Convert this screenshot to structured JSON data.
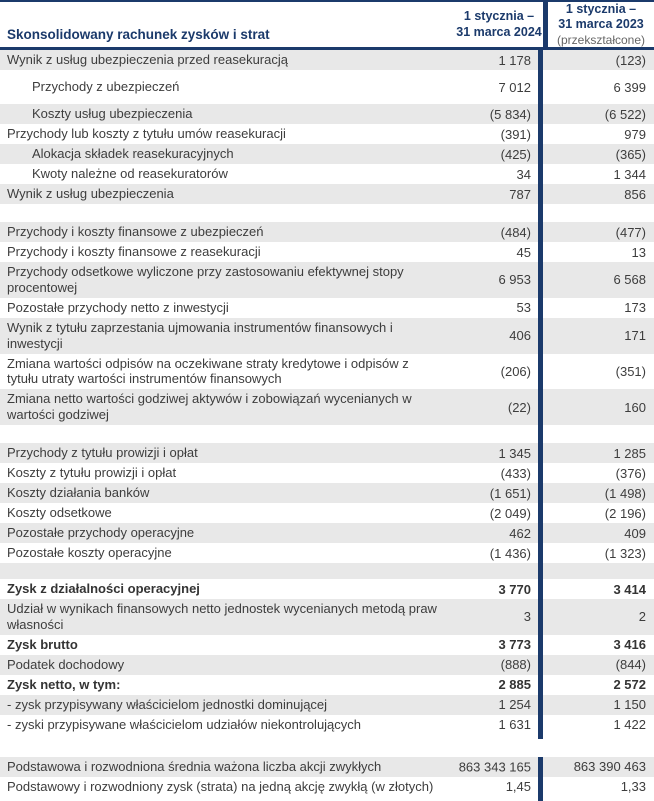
{
  "title": "Skonsolidowany rachunek zysków i strat",
  "columns": {
    "col_2024": {
      "line1": "1 stycznia –",
      "line2": "31 marca 2024"
    },
    "col_2023": {
      "line1": "1 stycznia –",
      "line2": "31 marca 2023",
      "note": "(przekształcone)"
    }
  },
  "colors": {
    "navy": "#1b3a6b",
    "row_shade": "#e8e8e8",
    "text": "#3d3d3d",
    "note_gray": "#666666"
  },
  "rows": [
    {
      "type": "data",
      "label": "Wynik z usług ubezpieczenia przed reasekuracją",
      "v2024": "1 178",
      "v2023": "(123)",
      "shaded": true
    },
    {
      "type": "data",
      "label": "Przychody z ubezpieczeń",
      "v2024": "7 012",
      "v2023": "6 399",
      "indent": true,
      "tall": true
    },
    {
      "type": "data",
      "label": "Koszty usług ubezpieczenia",
      "v2024": "(5 834)",
      "v2023": "(6 522)",
      "shaded": true,
      "indent": true
    },
    {
      "type": "data",
      "label": "Przychody lub koszty z tytułu umów reasekuracji",
      "v2024": "(391)",
      "v2023": "979"
    },
    {
      "type": "data",
      "label": "Alokacja składek reasekuracyjnych",
      "v2024": "(425)",
      "v2023": "(365)",
      "shaded": true,
      "indent": true
    },
    {
      "type": "data",
      "label": "Kwoty należne od reasekuratorów",
      "v2024": "34",
      "v2023": "1 344",
      "indent": true
    },
    {
      "type": "data",
      "label": "Wynik z usług ubezpieczenia",
      "v2024": "787",
      "v2023": "856",
      "shaded": true
    },
    {
      "type": "spacer",
      "height": 18,
      "shaded": false,
      "divider": true
    },
    {
      "type": "data",
      "label": "Przychody i koszty finansowe z ubezpieczeń",
      "v2024": "(484)",
      "v2023": "(477)",
      "shaded": true
    },
    {
      "type": "data",
      "label": "Przychody i koszty finansowe z reasekuracji",
      "v2024": "45",
      "v2023": "13"
    },
    {
      "type": "data",
      "label": "Przychody odsetkowe wyliczone przy zastosowaniu efektywnej stopy procentowej",
      "v2024": "6 953",
      "v2023": "6 568",
      "shaded": true
    },
    {
      "type": "data",
      "label": "Pozostałe przychody netto z inwestycji",
      "v2024": "53",
      "v2023": "173"
    },
    {
      "type": "data",
      "label": "Wynik z tytułu zaprzestania ujmowania instrumentów finansowych i inwestycji",
      "v2024": "406",
      "v2023": "171",
      "shaded": true
    },
    {
      "type": "data",
      "label": "Zmiana wartości odpisów na oczekiwane straty kredytowe i odpisów z tytułu utraty wartości instrumentów finansowych",
      "v2024": "(206)",
      "v2023": "(351)",
      "tall": true
    },
    {
      "type": "data",
      "label": "Zmiana netto wartości godziwej aktywów i zobowiązań wycenianych w wartości godziwej",
      "v2024": "(22)",
      "v2023": "160",
      "shaded": true
    },
    {
      "type": "spacer",
      "height": 18,
      "shaded": false,
      "divider": true
    },
    {
      "type": "data",
      "label": "Przychody z tytułu prowizji i opłat",
      "v2024": "1 345",
      "v2023": "1 285",
      "shaded": true
    },
    {
      "type": "data",
      "label": "Koszty z tytułu prowizji i opłat",
      "v2024": "(433)",
      "v2023": "(376)"
    },
    {
      "type": "data",
      "label": "Koszty działania banków",
      "v2024": "(1 651)",
      "v2023": "(1 498)",
      "shaded": true
    },
    {
      "type": "data",
      "label": "Koszty odsetkowe",
      "v2024": "(2 049)",
      "v2023": "(2 196)"
    },
    {
      "type": "data",
      "label": "Pozostałe przychody operacyjne",
      "v2024": "462",
      "v2023": "409",
      "shaded": true
    },
    {
      "type": "data",
      "label": "Pozostałe koszty operacyjne",
      "v2024": "(1 436)",
      "v2023": "(1 323)"
    },
    {
      "type": "spacer",
      "height": 16,
      "shaded": true,
      "divider": true
    },
    {
      "type": "data",
      "label": "Zysk z działalności operacyjnej",
      "v2024": "3 770",
      "v2023": "3 414",
      "bold": true
    },
    {
      "type": "data",
      "label": "Udział w wynikach finansowych netto jednostek wycenianych metodą praw własności",
      "v2024": "3",
      "v2023": "2",
      "shaded": true
    },
    {
      "type": "data",
      "label": "Zysk brutto",
      "v2024": "3 773",
      "v2023": "3 416",
      "bold": true
    },
    {
      "type": "data",
      "label": "Podatek dochodowy",
      "v2024": "(888)",
      "v2023": "(844)",
      "shaded": true
    },
    {
      "type": "data",
      "label": "Zysk netto, w tym:",
      "v2024": "2 885",
      "v2023": "2 572",
      "bold": true
    },
    {
      "type": "data",
      "label": "- zysk przypisywany właścicielom jednostki dominującej",
      "v2024": "1 254",
      "v2023": "1 150",
      "shaded": true
    },
    {
      "type": "data",
      "label": "- zyski przypisywane właścicielom udziałów niekontrolujących",
      "v2024": "1 631",
      "v2023": "1 422"
    },
    {
      "type": "spacer",
      "height": 4,
      "shaded": false,
      "divider": true
    },
    {
      "type": "spacer",
      "height": 18,
      "shaded": false,
      "divider": false
    },
    {
      "type": "data",
      "label": "Podstawowa i rozwodniona średnia ważona liczba akcji zwykłych",
      "v2024": "863 343 165",
      "v2023": "863 390 463",
      "shaded": true,
      "clip_2024": true
    },
    {
      "type": "data",
      "label": "Podstawowy i rozwodniony zysk (strata) na jedną akcję zwykłą (w złotych)",
      "v2024": "1,45",
      "v2023": "1,33"
    },
    {
      "type": "spacer",
      "height": 4,
      "shaded": false,
      "divider": true
    }
  ]
}
